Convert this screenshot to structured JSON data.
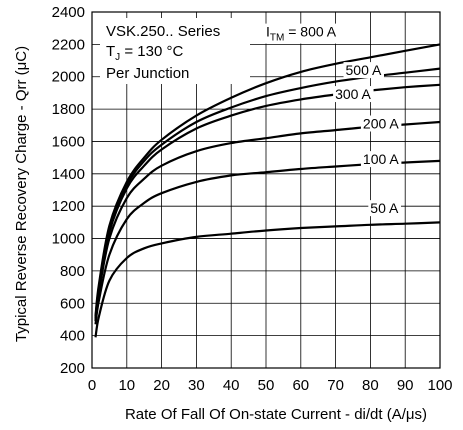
{
  "chart_data": {
    "type": "line",
    "xlabel": "Rate Of Fall Of On-state Current - di/dt (A/μs)",
    "ylabel": "Typical Reverse Recovery Charge - Qrr (μC)",
    "xlim": [
      0,
      100
    ],
    "ylim": [
      200,
      2400
    ],
    "xticks": [
      0,
      10,
      20,
      30,
      40,
      50,
      60,
      70,
      80,
      90,
      100
    ],
    "yticks": [
      200,
      400,
      600,
      800,
      1000,
      1200,
      1400,
      1600,
      1800,
      2000,
      2200,
      2400
    ],
    "grid": true,
    "annotation": {
      "line1": "VSK.250.. Series",
      "line2_main": "T",
      "line2_sub": "J",
      "line2_rest": " = 130 °C",
      "line3": "Per  Junction"
    },
    "legend_prefix_main": "I",
    "legend_prefix_sub": "TM",
    "series": [
      {
        "name": "800 A",
        "label": " = 800 A",
        "x": [
          1,
          2,
          5,
          10,
          15,
          20,
          30,
          40,
          50,
          60,
          70,
          80,
          90,
          100
        ],
        "y": [
          520,
          720,
          1080,
          1350,
          1500,
          1610,
          1760,
          1870,
          1960,
          2030,
          2080,
          2120,
          2160,
          2200
        ]
      },
      {
        "name": "500 A",
        "label": "500 A",
        "x": [
          1,
          2,
          5,
          10,
          15,
          20,
          30,
          40,
          50,
          60,
          70,
          80,
          90,
          100
        ],
        "y": [
          510,
          700,
          1060,
          1330,
          1480,
          1580,
          1720,
          1810,
          1880,
          1930,
          1970,
          2000,
          2025,
          2050
        ]
      },
      {
        "name": "300 A",
        "label": "300 A",
        "x": [
          1,
          2,
          5,
          10,
          15,
          20,
          30,
          40,
          50,
          60,
          70,
          80,
          90,
          100
        ],
        "y": [
          500,
          690,
          1040,
          1310,
          1450,
          1550,
          1680,
          1760,
          1820,
          1860,
          1890,
          1915,
          1935,
          1950
        ]
      },
      {
        "name": "200 A",
        "label": "200 A",
        "x": [
          1,
          2,
          5,
          10,
          15,
          20,
          30,
          40,
          50,
          60,
          70,
          80,
          90,
          100
        ],
        "y": [
          490,
          670,
          1000,
          1250,
          1370,
          1450,
          1540,
          1590,
          1620,
          1650,
          1670,
          1690,
          1705,
          1720
        ]
      },
      {
        "name": "100 A",
        "label": "100 A",
        "x": [
          1,
          2,
          5,
          10,
          15,
          20,
          30,
          40,
          50,
          60,
          70,
          80,
          90,
          100
        ],
        "y": [
          470,
          620,
          900,
          1120,
          1220,
          1280,
          1350,
          1390,
          1410,
          1430,
          1445,
          1460,
          1470,
          1480
        ]
      },
      {
        "name": "50 A",
        "label": "50 A",
        "x": [
          1,
          2,
          5,
          10,
          15,
          20,
          30,
          40,
          50,
          60,
          70,
          80,
          90,
          100
        ],
        "y": [
          390,
          520,
          740,
          880,
          940,
          970,
          1010,
          1030,
          1050,
          1065,
          1075,
          1085,
          1092,
          1100
        ]
      }
    ]
  }
}
